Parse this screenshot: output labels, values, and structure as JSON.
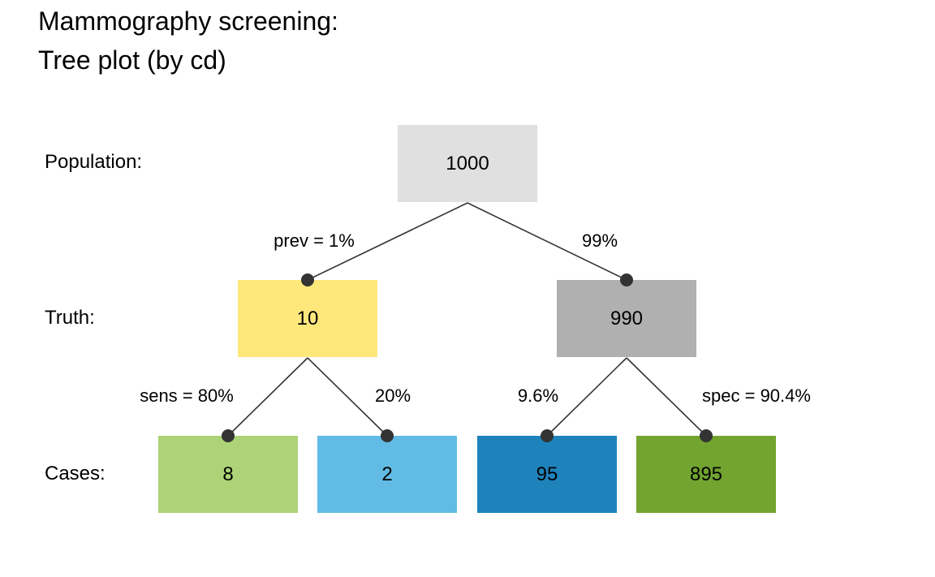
{
  "title": {
    "line1": "Mammography screening:",
    "line2": "Tree plot (by cd)"
  },
  "row_labels": {
    "population": "Population:",
    "truth": "Truth:",
    "cases": "Cases:"
  },
  "nodes": {
    "population": {
      "value": "1000",
      "color": "#e0e0e0"
    },
    "true_pos_cond": {
      "value": "10",
      "color": "#fee87c"
    },
    "true_neg_cond": {
      "value": "990",
      "color": "#b0b0b0"
    },
    "hit": {
      "value": "8",
      "color": "#acd377"
    },
    "miss": {
      "value": "2",
      "color": "#62bbe5"
    },
    "false_alarm": {
      "value": "95",
      "color": "#1e83bb"
    },
    "correct_rejection": {
      "value": "895",
      "color": "#72a42f"
    }
  },
  "edges": {
    "prev": "prev = 1%",
    "not_prev": "99%",
    "sens": "sens = 80%",
    "miss_rate": "20%",
    "fart": "9.6%",
    "spec": "spec = 90.4%"
  },
  "line_color": "#333333"
}
